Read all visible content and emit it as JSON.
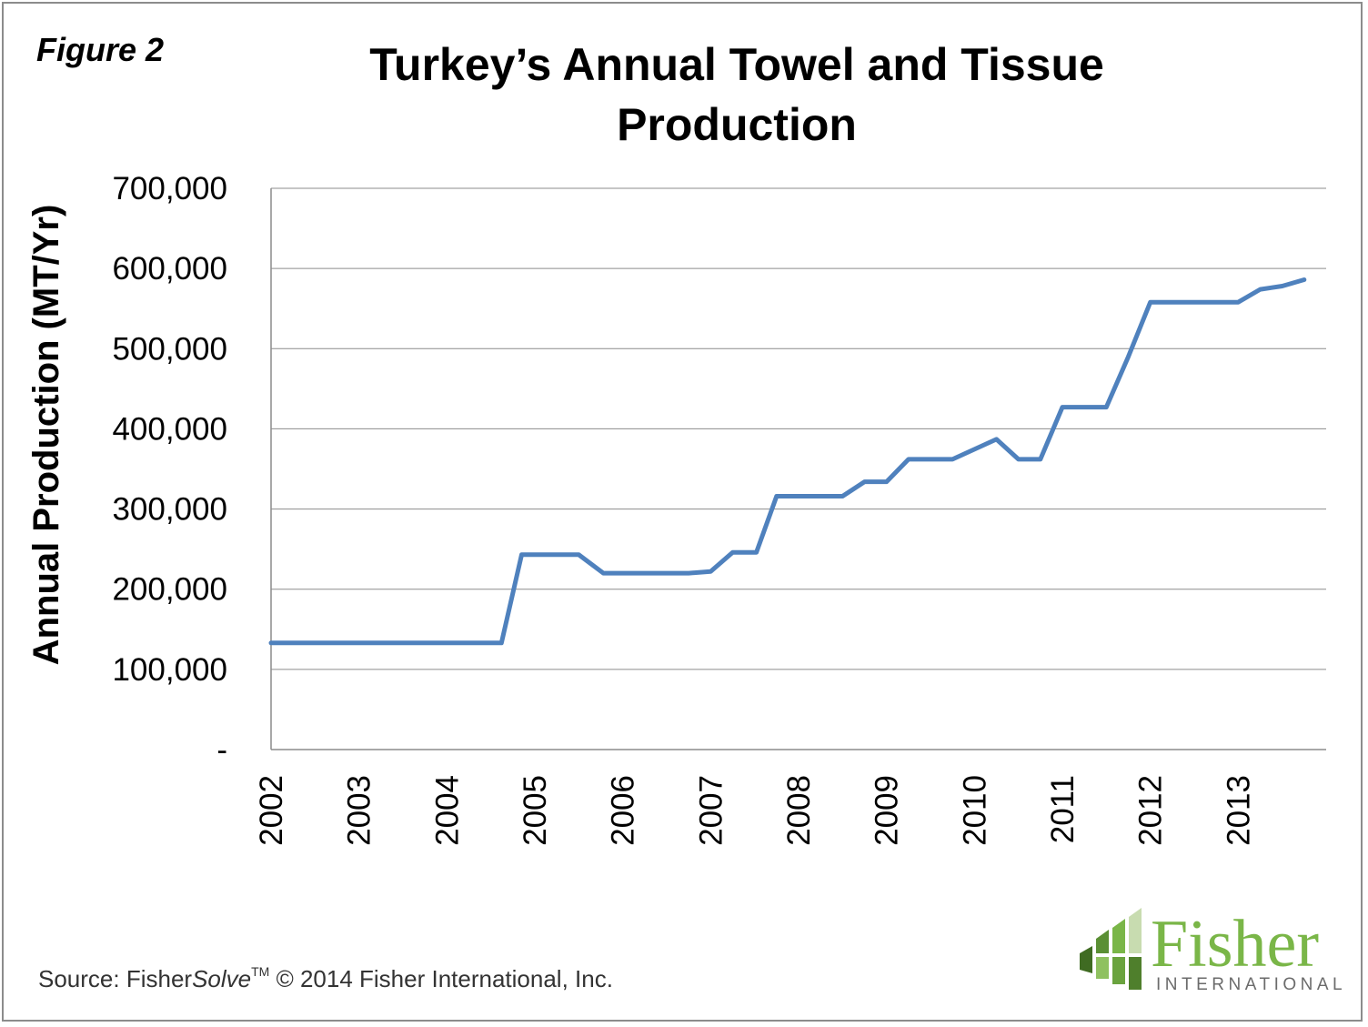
{
  "figure_label": "Figure 2",
  "title_lines": [
    "Turkey’s Annual Towel and Tissue",
    "Production"
  ],
  "source": {
    "prefix": "Source: Fisher",
    "italic": "Solve",
    "tm": "TM",
    "suffix": " © 2014 Fisher International, Inc."
  },
  "logo": {
    "name": "Fisher",
    "tagline": "INTERNATIONAL",
    "color": "#7ab648"
  },
  "chart_data": {
    "type": "line",
    "title": "Turkey’s Annual Towel and Tissue Production",
    "xlabel": "",
    "ylabel": "Annual Production (MT/Yr)",
    "ylim": [
      0,
      700000
    ],
    "xlim": [
      2002,
      2014
    ],
    "yticks": [
      0,
      100000,
      200000,
      300000,
      400000,
      500000,
      600000,
      700000
    ],
    "ytick_labels": [
      "-",
      "100,000",
      "200,000",
      "300,000",
      "400,000",
      "500,000",
      "600,000",
      "700,000"
    ],
    "xtick_labels": [
      "2002",
      "2003",
      "2004",
      "2005",
      "2006",
      "2007",
      "2008",
      "2009",
      "2010",
      "2011",
      "2012",
      "2013"
    ],
    "grid": true,
    "line_color": "#4f81bd",
    "series": [
      {
        "x": [
          2002.0,
          2004.62,
          2004.85,
          2005.5,
          2005.78,
          2006.75,
          2007.0,
          2007.25,
          2007.52,
          2007.75,
          2008.5,
          2008.75,
          2009.0,
          2009.25,
          2009.75,
          2010.25,
          2010.5,
          2010.75,
          2011.0,
          2011.5,
          2011.75,
          2012.0,
          2012.5,
          2012.75,
          2013.0,
          2013.25,
          2013.5,
          2013.75
        ],
        "values": [
          133000,
          133000,
          243000,
          243000,
          220000,
          220000,
          222000,
          246000,
          246000,
          316000,
          316000,
          334000,
          334000,
          362000,
          362000,
          387000,
          362000,
          362000,
          427000,
          427000,
          490000,
          558000,
          558000,
          558000,
          558000,
          574000,
          578000,
          586000
        ]
      }
    ]
  }
}
